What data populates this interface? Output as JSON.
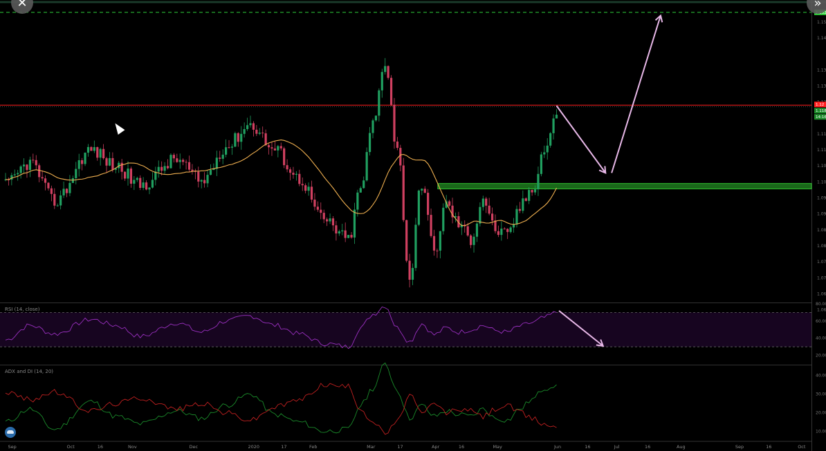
{
  "window": {
    "close_icon": "close-icon",
    "expand_icon": "double-chevron-right-icon"
  },
  "colors": {
    "up": "#20a060",
    "down": "#d04060",
    "ma": "#f0b050",
    "resistance": "#ff2020",
    "support_zone": "#2fbe2f",
    "target_line": "#2fd03a",
    "arrows": "#e8b8e8",
    "rsi": "#9a30c0",
    "rsi_band": "#170520",
    "plus_di": "#1a8a2a",
    "minus_di": "#c02020"
  },
  "chart_data": [
    {
      "type": "candlestick",
      "pane": "price",
      "title": "",
      "x_tick_labels": [
        "Sep",
        "Oct",
        "16",
        "Nov",
        "Dec",
        "2020",
        "17",
        "Feb",
        "Mar",
        "17",
        "Apr",
        "16",
        "May",
        "Jun",
        "16",
        "Jul",
        "16",
        "Aug",
        "Sep",
        "16",
        "Oct"
      ],
      "y_tick_labels": [
        "1.150",
        "1.145",
        "1.135",
        "1.130",
        "1.125",
        "1.120",
        "1.115",
        "1.110",
        "1.105",
        "1.100",
        "1.095",
        "1.090",
        "1.085",
        "1.080",
        "1.075",
        "1.070",
        "1.065",
        "1.060"
      ],
      "ylim": [
        1.0625,
        1.156
      ],
      "price_badges": [
        {
          "text": "1.12",
          "color": "#ff2020"
        },
        {
          "text": "1.118",
          "color": "#1d8a2a"
        },
        {
          "text": "14:16",
          "color": "#1d8a2a"
        },
        {
          "text": "1.152",
          "color": "#2fd03a"
        }
      ],
      "levels": {
        "target": 1.153,
        "resistance": 1.124,
        "support_zone": [
          1.0978,
          1.0995
        ]
      },
      "arrows": [
        {
          "from": [
            45,
            1.1238
          ],
          "to": [
            49,
            1.1028
          ]
        },
        {
          "from": [
            49.5,
            1.1028
          ],
          "to": [
            53.5,
            1.152
          ]
        }
      ],
      "anchors": [
        {
          "i": 0,
          "v": 1.099
        },
        {
          "i": 2,
          "v": 1.106
        },
        {
          "i": 4,
          "v": 1.094
        },
        {
          "i": 7,
          "v": 1.11
        },
        {
          "i": 9,
          "v": 1.105
        },
        {
          "i": 11,
          "v": 1.099
        },
        {
          "i": 14,
          "v": 1.107
        },
        {
          "i": 16,
          "v": 1.1
        },
        {
          "i": 18,
          "v": 1.111
        },
        {
          "i": 20,
          "v": 1.118
        },
        {
          "i": 22,
          "v": 1.11
        },
        {
          "i": 24,
          "v": 1.101
        },
        {
          "i": 26,
          "v": 1.088
        },
        {
          "i": 28,
          "v": 1.082
        },
        {
          "i": 29,
          "v": 1.098
        },
        {
          "i": 30,
          "v": 1.118
        },
        {
          "i": 31,
          "v": 1.138
        },
        {
          "i": 32,
          "v": 1.11
        },
        {
          "i": 33,
          "v": 1.07
        },
        {
          "i": 34,
          "v": 1.1
        },
        {
          "i": 35,
          "v": 1.078
        },
        {
          "i": 36,
          "v": 1.093
        },
        {
          "i": 37,
          "v": 1.087
        },
        {
          "i": 38,
          "v": 1.082
        },
        {
          "i": 39,
          "v": 1.095
        },
        {
          "i": 40,
          "v": 1.085
        },
        {
          "i": 41,
          "v": 1.083
        },
        {
          "i": 42,
          "v": 1.092
        },
        {
          "i": 43,
          "v": 1.098
        },
        {
          "i": 44,
          "v": 1.11
        },
        {
          "i": 45,
          "v": 1.121
        }
      ],
      "last_index": 45,
      "x_range": [
        0,
        66
      ]
    },
    {
      "type": "line",
      "pane": "rsi",
      "title": "RSI (14, close)",
      "y_tick_labels": [
        "80.00",
        "60.00",
        "40.00",
        "20.00"
      ],
      "ylim": [
        10,
        80
      ],
      "band": [
        30,
        70
      ],
      "arrow": {
        "from": [
          45.2,
          72
        ],
        "to": [
          48.8,
          31
        ]
      },
      "anchors": [
        {
          "i": 0,
          "v": 38
        },
        {
          "i": 2,
          "v": 55
        },
        {
          "i": 4,
          "v": 45
        },
        {
          "i": 7,
          "v": 62
        },
        {
          "i": 9,
          "v": 55
        },
        {
          "i": 11,
          "v": 42
        },
        {
          "i": 14,
          "v": 58
        },
        {
          "i": 16,
          "v": 47
        },
        {
          "i": 18,
          "v": 60
        },
        {
          "i": 20,
          "v": 66
        },
        {
          "i": 22,
          "v": 55
        },
        {
          "i": 24,
          "v": 45
        },
        {
          "i": 26,
          "v": 34
        },
        {
          "i": 28,
          "v": 30
        },
        {
          "i": 29,
          "v": 52
        },
        {
          "i": 30,
          "v": 68
        },
        {
          "i": 31,
          "v": 78
        },
        {
          "i": 32,
          "v": 52
        },
        {
          "i": 33,
          "v": 36
        },
        {
          "i": 34,
          "v": 57
        },
        {
          "i": 35,
          "v": 44
        },
        {
          "i": 36,
          "v": 52
        },
        {
          "i": 37,
          "v": 47
        },
        {
          "i": 38,
          "v": 50
        },
        {
          "i": 39,
          "v": 55
        },
        {
          "i": 40,
          "v": 49
        },
        {
          "i": 41,
          "v": 47
        },
        {
          "i": 42,
          "v": 54
        },
        {
          "i": 43,
          "v": 58
        },
        {
          "i": 44,
          "v": 64
        },
        {
          "i": 45,
          "v": 70
        }
      ]
    },
    {
      "type": "line",
      "pane": "adx",
      "title": "ADX and DI (14, 20)",
      "y_tick_labels": [
        "40.00",
        "30.00",
        "20.00",
        "10.00"
      ],
      "ylim": [
        5,
        45
      ],
      "series": [
        {
          "color_key": "plus_di",
          "anchors": [
            {
              "i": 0,
              "v": 15
            },
            {
              "i": 2,
              "v": 22
            },
            {
              "i": 4,
              "v": 11
            },
            {
              "i": 7,
              "v": 26
            },
            {
              "i": 9,
              "v": 18
            },
            {
              "i": 11,
              "v": 14
            },
            {
              "i": 14,
              "v": 21
            },
            {
              "i": 16,
              "v": 17
            },
            {
              "i": 18,
              "v": 24
            },
            {
              "i": 20,
              "v": 30
            },
            {
              "i": 22,
              "v": 19
            },
            {
              "i": 24,
              "v": 15
            },
            {
              "i": 26,
              "v": 10
            },
            {
              "i": 28,
              "v": 11
            },
            {
              "i": 29,
              "v": 24
            },
            {
              "i": 30,
              "v": 33
            },
            {
              "i": 31,
              "v": 46
            },
            {
              "i": 32,
              "v": 32
            },
            {
              "i": 33,
              "v": 17
            },
            {
              "i": 34,
              "v": 24
            },
            {
              "i": 35,
              "v": 18
            },
            {
              "i": 36,
              "v": 21
            },
            {
              "i": 37,
              "v": 19
            },
            {
              "i": 38,
              "v": 18
            },
            {
              "i": 39,
              "v": 22
            },
            {
              "i": 40,
              "v": 17
            },
            {
              "i": 41,
              "v": 16
            },
            {
              "i": 42,
              "v": 22
            },
            {
              "i": 43,
              "v": 27
            },
            {
              "i": 44,
              "v": 33
            },
            {
              "i": 45,
              "v": 35
            }
          ]
        },
        {
          "color_key": "minus_di",
          "anchors": [
            {
              "i": 0,
              "v": 31
            },
            {
              "i": 2,
              "v": 27
            },
            {
              "i": 4,
              "v": 31
            },
            {
              "i": 7,
              "v": 21
            },
            {
              "i": 9,
              "v": 25
            },
            {
              "i": 11,
              "v": 28
            },
            {
              "i": 14,
              "v": 22
            },
            {
              "i": 16,
              "v": 25
            },
            {
              "i": 18,
              "v": 20
            },
            {
              "i": 20,
              "v": 16
            },
            {
              "i": 22,
              "v": 23
            },
            {
              "i": 24,
              "v": 27
            },
            {
              "i": 26,
              "v": 35
            },
            {
              "i": 28,
              "v": 34
            },
            {
              "i": 29,
              "v": 22
            },
            {
              "i": 30,
              "v": 15
            },
            {
              "i": 31,
              "v": 9
            },
            {
              "i": 32,
              "v": 15
            },
            {
              "i": 33,
              "v": 30
            },
            {
              "i": 34,
              "v": 19
            },
            {
              "i": 35,
              "v": 25
            },
            {
              "i": 36,
              "v": 20
            },
            {
              "i": 37,
              "v": 22
            },
            {
              "i": 38,
              "v": 21
            },
            {
              "i": 39,
              "v": 18
            },
            {
              "i": 40,
              "v": 22
            },
            {
              "i": 41,
              "v": 24
            },
            {
              "i": 42,
              "v": 20
            },
            {
              "i": 43,
              "v": 17
            },
            {
              "i": 44,
              "v": 14
            },
            {
              "i": 45,
              "v": 12
            }
          ]
        }
      ]
    }
  ]
}
